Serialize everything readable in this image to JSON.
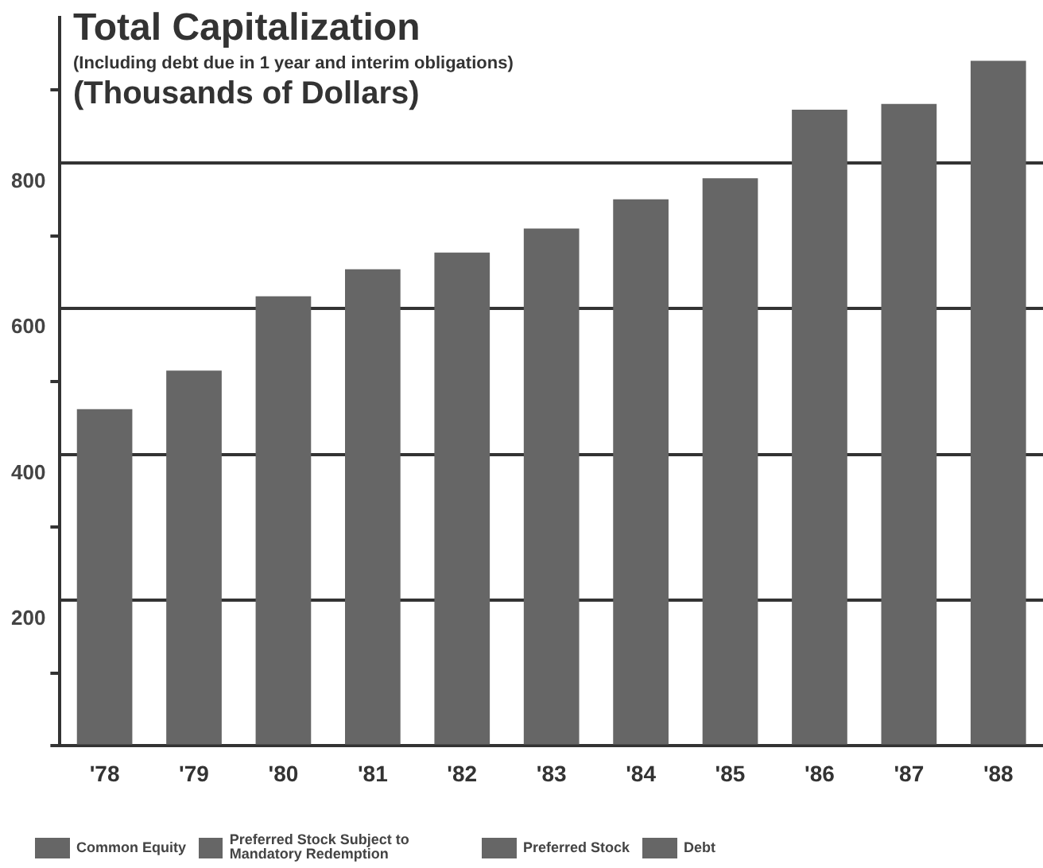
{
  "chart_data": {
    "type": "bar",
    "title": "Total Capitalization",
    "subtitle": "(Including debt due in 1 year and interim obligations)",
    "ylabel": "(Thousands of Dollars)",
    "categories": [
      "'78",
      "'79",
      "'80",
      "'81",
      "'82",
      "'83",
      "'84",
      "'85",
      "'86",
      "'87",
      "'88"
    ],
    "values": [
      462,
      515,
      617,
      654,
      677,
      710,
      750,
      779,
      873,
      881,
      940
    ],
    "color": "#666666",
    "ylim": [
      0,
      1000
    ],
    "yticks": [
      {
        "value": 0,
        "label": null
      },
      {
        "value": 100,
        "label": null
      },
      200,
      {
        "value": 300,
        "label": null
      },
      400,
      {
        "value": 500,
        "label": null
      },
      600,
      {
        "value": 700,
        "label": null
      },
      800,
      {
        "value": 900,
        "label": null
      }
    ],
    "grid": "y",
    "annotations": [
      "Common Equity",
      "Preferred Stock Subject to Mandatory Redemption",
      "Preferred Stock",
      "Debt"
    ]
  }
}
